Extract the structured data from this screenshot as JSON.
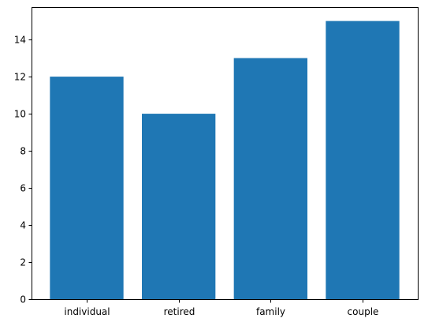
{
  "chart_data": {
    "type": "bar",
    "categories": [
      "individual",
      "retired",
      "family",
      "couple"
    ],
    "values": [
      12,
      10,
      13,
      15
    ],
    "title": "",
    "xlabel": "",
    "ylabel": "",
    "ylim": [
      0,
      15.75
    ],
    "yticks": [
      0,
      2,
      4,
      6,
      8,
      10,
      12,
      14
    ],
    "grid": false,
    "legend": "none",
    "bar_color": "#1f77b4"
  }
}
